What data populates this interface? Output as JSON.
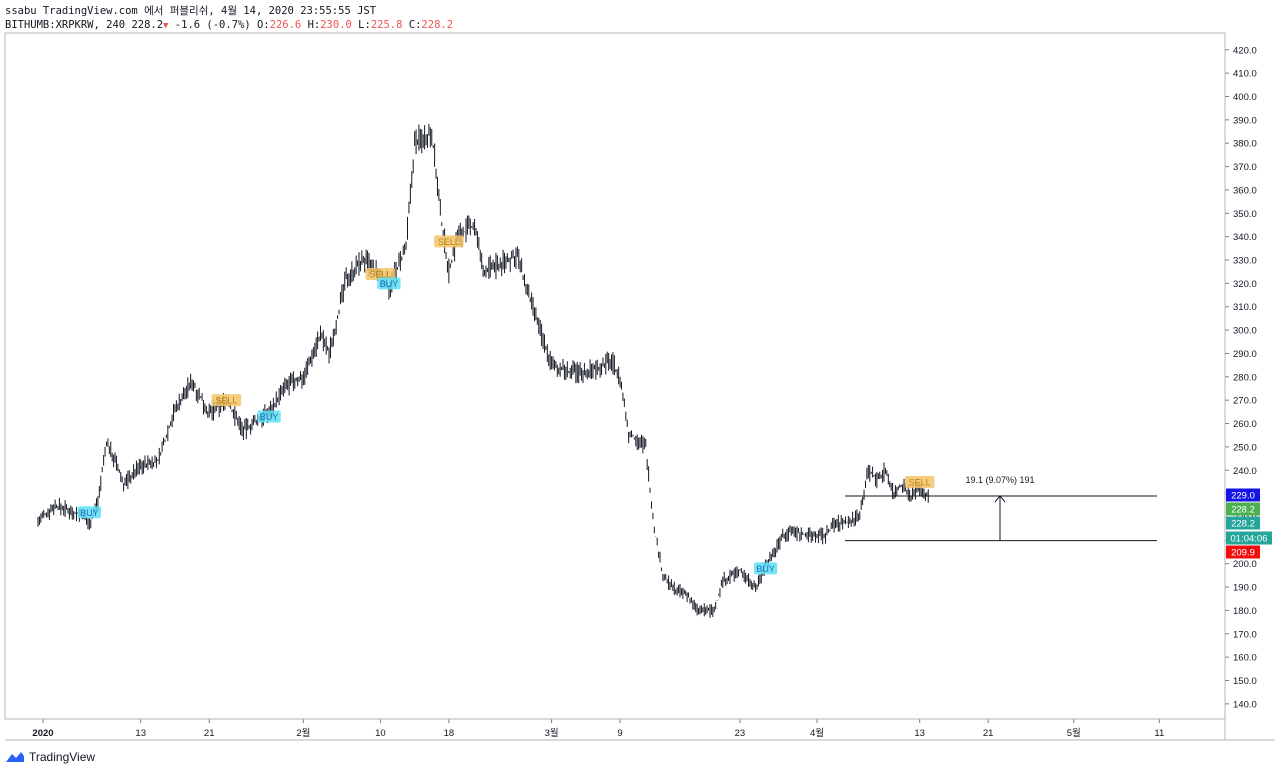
{
  "header": {
    "publish_line": "ssabu TradingView.com 에서 퍼블리쉬, 4월 14, 2020 23:55:55 JST",
    "symbol": "BITHUMB:XRPKRW, 240",
    "last": "228.2",
    "change": "-1.6 (-0.7%)",
    "o_label": "O:",
    "o_value": "226.6",
    "h_label": "H:",
    "h_value": "230.0",
    "l_label": "L:",
    "l_value": "225.8",
    "c_label": "C:",
    "c_value": "228.2"
  },
  "footer": {
    "brand": "TradingView"
  },
  "colors": {
    "bar": "#131722",
    "buy_bg": "#5ee0f5",
    "sell_bg": "#f5c36b",
    "label_blue": "#1414e6",
    "label_green": "#4caf50",
    "label_teal": "#26a69a",
    "label_red": "#f20d0d"
  },
  "chart_data": {
    "type": "line",
    "title": "",
    "xlabel": "",
    "ylabel": "",
    "ylim": [
      130,
      425
    ],
    "x_tick_labels": [
      "2020",
      "13",
      "21",
      "2월",
      "10",
      "18",
      "3월",
      "9",
      "23",
      "4월",
      "13",
      "21",
      "5월",
      "11"
    ],
    "y_tick_labels": [
      "420.0",
      "410.0",
      "400.0",
      "390.0",
      "380.0",
      "370.0",
      "360.0",
      "350.0",
      "340.0",
      "330.0",
      "320.0",
      "310.0",
      "300.0",
      "290.0",
      "280.0",
      "270.0",
      "260.0",
      "250.0",
      "240.0",
      "230.0",
      "220.0",
      "210.0",
      "200.0",
      "190.0",
      "180.0",
      "170.0",
      "160.0",
      "150.0",
      "140.0"
    ],
    "series": [
      {
        "values": [
          {
            "x": "2020-01-01",
            "y": 218
          },
          {
            "x": "2020-01-03",
            "y": 225
          },
          {
            "x": "2020-01-06",
            "y": 221
          },
          {
            "x": "2020-01-07",
            "y": 217
          },
          {
            "x": "2020-01-08",
            "y": 227
          },
          {
            "x": "2020-01-09",
            "y": 252
          },
          {
            "x": "2020-01-10",
            "y": 244
          },
          {
            "x": "2020-01-11",
            "y": 234
          },
          {
            "x": "2020-01-13",
            "y": 242
          },
          {
            "x": "2020-01-15",
            "y": 244
          },
          {
            "x": "2020-01-17",
            "y": 266
          },
          {
            "x": "2020-01-19",
            "y": 278
          },
          {
            "x": "2020-01-21",
            "y": 264
          },
          {
            "x": "2020-01-23",
            "y": 270
          },
          {
            "x": "2020-01-25",
            "y": 257
          },
          {
            "x": "2020-01-28",
            "y": 265
          },
          {
            "x": "2020-01-30",
            "y": 276
          },
          {
            "x": "2020-02-01",
            "y": 280
          },
          {
            "x": "2020-02-03",
            "y": 298
          },
          {
            "x": "2020-02-04",
            "y": 290
          },
          {
            "x": "2020-02-06",
            "y": 322
          },
          {
            "x": "2020-02-08",
            "y": 330
          },
          {
            "x": "2020-02-10",
            "y": 323
          },
          {
            "x": "2020-02-11",
            "y": 318
          },
          {
            "x": "2020-02-13",
            "y": 335
          },
          {
            "x": "2020-02-14",
            "y": 380
          },
          {
            "x": "2020-02-16",
            "y": 385
          },
          {
            "x": "2020-02-17",
            "y": 350
          },
          {
            "x": "2020-02-18",
            "y": 325
          },
          {
            "x": "2020-02-19",
            "y": 340
          },
          {
            "x": "2020-02-21",
            "y": 345
          },
          {
            "x": "2020-02-22",
            "y": 325
          },
          {
            "x": "2020-02-24",
            "y": 328
          },
          {
            "x": "2020-02-26",
            "y": 332
          },
          {
            "x": "2020-02-27",
            "y": 318
          },
          {
            "x": "2020-02-29",
            "y": 296
          },
          {
            "x": "2020-03-01",
            "y": 285
          },
          {
            "x": "2020-03-03",
            "y": 282
          },
          {
            "x": "2020-03-05",
            "y": 282
          },
          {
            "x": "2020-03-07",
            "y": 285
          },
          {
            "x": "2020-03-08",
            "y": 287
          },
          {
            "x": "2020-03-09",
            "y": 279
          },
          {
            "x": "2020-03-10",
            "y": 256
          },
          {
            "x": "2020-03-12",
            "y": 250
          },
          {
            "x": "2020-03-13",
            "y": 215
          },
          {
            "x": "2020-03-14",
            "y": 195
          },
          {
            "x": "2020-03-15",
            "y": 190
          },
          {
            "x": "2020-03-17",
            "y": 186
          },
          {
            "x": "2020-03-18",
            "y": 180
          },
          {
            "x": "2020-03-20",
            "y": 180
          },
          {
            "x": "2020-03-21",
            "y": 193
          },
          {
            "x": "2020-03-23",
            "y": 197
          },
          {
            "x": "2020-03-25",
            "y": 190
          },
          {
            "x": "2020-03-26",
            "y": 200
          },
          {
            "x": "2020-03-27",
            "y": 205
          },
          {
            "x": "2020-03-28",
            "y": 212
          },
          {
            "x": "2020-03-29",
            "y": 214
          },
          {
            "x": "2020-03-31",
            "y": 212
          },
          {
            "x": "2020-04-02",
            "y": 212
          },
          {
            "x": "2020-04-03",
            "y": 217
          },
          {
            "x": "2020-04-05",
            "y": 218
          },
          {
            "x": "2020-04-06",
            "y": 222
          },
          {
            "x": "2020-04-07",
            "y": 240
          },
          {
            "x": "2020-04-08",
            "y": 236
          },
          {
            "x": "2020-04-09",
            "y": 240
          },
          {
            "x": "2020-04-10",
            "y": 230
          },
          {
            "x": "2020-04-11",
            "y": 234
          },
          {
            "x": "2020-04-12",
            "y": 229
          },
          {
            "x": "2020-04-13",
            "y": 233
          },
          {
            "x": "2020-04-14",
            "y": 228.2
          }
        ]
      }
    ],
    "signals": [
      {
        "text": "BUY",
        "x": "2020-01-07",
        "y": 222
      },
      {
        "text": "SELL",
        "x": "2020-01-23",
        "y": 270
      },
      {
        "text": "BUY",
        "x": "2020-01-28",
        "y": 263
      },
      {
        "text": "SELL",
        "x": "2020-02-10",
        "y": 324
      },
      {
        "text": "BUY",
        "x": "2020-02-11",
        "y": 320
      },
      {
        "text": "SELL",
        "x": "2020-02-18",
        "y": 338
      },
      {
        "text": "BUY",
        "x": "2020-03-26",
        "y": 198
      },
      {
        "text": "SELL",
        "x": "2020-04-13",
        "y": 235
      }
    ],
    "hlines": [
      {
        "value": 229.0
      },
      {
        "value": 209.9
      }
    ],
    "measure": {
      "text": "19.1 (9.07%) 191",
      "from": 209.9,
      "to": 229.0
    },
    "price_labels": [
      {
        "text": "229.0",
        "color": "#1414e6"
      },
      {
        "text": "228.2",
        "color": "#4caf50"
      },
      {
        "text": "228.2",
        "color": "#26a69a"
      },
      {
        "text": "01:04:06",
        "color": "#26a69a"
      },
      {
        "text": "209.9",
        "color": "#f20d0d"
      }
    ]
  }
}
